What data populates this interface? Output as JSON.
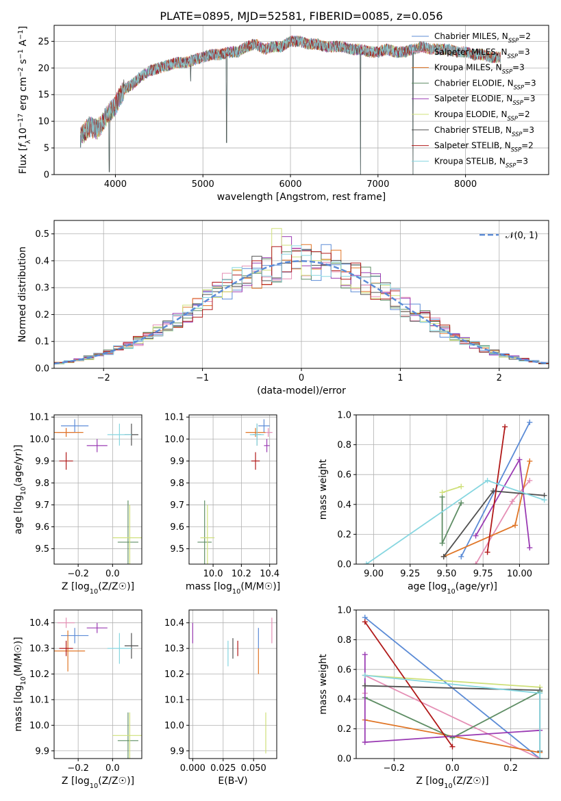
{
  "figure_title": "PLATE=0895, MJD=52581, FIBERID=0085, z=0.056",
  "colors": {
    "Chabrier MILES": "#5b8bd6",
    "Salpeter MILES": "#e58fb5",
    "Kroupa MILES": "#e07526",
    "Chabrier ELODIE": "#5e8d64",
    "Salpeter ELODIE": "#9a3bb3",
    "Kroupa ELODIE": "#cfe07a",
    "Chabrier STELIB": "#505050",
    "Salpeter STELIB": "#b01818",
    "Kroupa STELIB": "#86d6e0"
  },
  "chart_data": [
    {
      "id": "spectrum",
      "type": "line",
      "title": "PLATE=0895, MJD=52581, FIBERID=0085, z=0.056",
      "xlabel": "wavelength [Angstrom, rest frame]",
      "ylabel": "Flux [f_λ10^-17 erg cm^-2 s^-1 A^-1]",
      "xlim": [
        3300,
        8950
      ],
      "ylim": [
        0,
        28
      ],
      "xticks": [
        4000,
        5000,
        6000,
        7000,
        8000
      ],
      "yticks": [
        0,
        5,
        10,
        15,
        20,
        25
      ],
      "legend_position": "top-right",
      "legend": [
        {
          "name": "Chabrier MILES",
          "label": "N_SSP=2"
        },
        {
          "name": "Salpeter MILES",
          "label": "N_SSP=3"
        },
        {
          "name": "Kroupa MILES",
          "label": "N_SSP=3"
        },
        {
          "name": "Chabrier ELODIE",
          "label": "N_SSP=3"
        },
        {
          "name": "Salpeter ELODIE",
          "label": "N_SSP=3"
        },
        {
          "name": "Kroupa ELODIE",
          "label": "N_SSP=2"
        },
        {
          "name": "Chabrier STELIB",
          "label": "N_SSP=3"
        },
        {
          "name": "Salpeter STELIB",
          "label": "N_SSP=2"
        },
        {
          "name": "Kroupa STELIB",
          "label": "N_SSP=3"
        }
      ],
      "observed_flux": {
        "x": [
          3600,
          3700,
          3800,
          3900,
          4000,
          4100,
          4200,
          4300,
          4400,
          4500,
          4600,
          4700,
          4800,
          4900,
          5000,
          5100,
          5200,
          5300,
          5400,
          5500,
          5600,
          5700,
          5800,
          5900,
          6000,
          6100,
          6200,
          6300,
          6400,
          6500,
          6600,
          6700,
          6800,
          6900,
          7000,
          7100,
          7200,
          7300,
          7400,
          7500,
          7600,
          7700,
          7800,
          7900,
          8000,
          8100,
          8200,
          8300,
          8400
        ],
        "y": [
          7,
          9,
          8.5,
          11,
          13,
          16,
          17,
          18.5,
          19.5,
          20,
          20.5,
          21,
          21,
          21.5,
          22,
          22.5,
          22.5,
          23,
          23,
          24,
          24.5,
          23.5,
          24,
          24,
          25,
          25,
          24.5,
          24.5,
          24,
          24,
          24,
          23.5,
          23.5,
          23,
          23,
          23.5,
          23,
          23,
          23.5,
          24,
          23.5,
          23.5,
          23.5,
          23,
          23,
          22.5,
          22.5,
          22,
          22
        ],
        "dips": [
          [
            3930,
            0.5
          ],
          [
            4860,
            17.5
          ],
          [
            5270,
            6
          ],
          [
            6800,
            0
          ],
          [
            7400,
            0
          ]
        ]
      }
    },
    {
      "id": "residuals",
      "type": "line",
      "xlabel": "(data-model)/error",
      "ylabel": "Normed distribution",
      "xlim": [
        -2.5,
        2.5
      ],
      "ylim": [
        0,
        0.55
      ],
      "xticks": [
        -2,
        -1,
        0,
        1,
        2
      ],
      "yticks": [
        0.0,
        0.1,
        0.2,
        0.3,
        0.4,
        0.5
      ],
      "legend_position": "top-right",
      "reference_curve": {
        "label": "𝒩(0, 1)",
        "mean": 0,
        "sigma": 1
      },
      "histogram_bin_width": 0.1,
      "histogram_peak_values": {
        "Kroupa ELODIE": 0.52,
        "Salpeter ELODIE": 0.49,
        "Kroupa MILES": 0.46,
        "Chabrier MILES": 0.46,
        "Salpeter STELIB": 0.4
      }
    },
    {
      "id": "age_vs_Z",
      "type": "scatter",
      "xlabel": "Z [log10(Z/Z☉)]",
      "ylabel": "age  [log10(age/yr)]",
      "xlim": [
        -0.34,
        0.17
      ],
      "ylim": [
        9.43,
        10.11
      ],
      "xticks": [
        -0.2,
        0.0
      ],
      "yticks": [
        9.5,
        9.6,
        9.7,
        9.8,
        9.9,
        10.0,
        10.1
      ],
      "points": [
        {
          "model": "Chabrier MILES",
          "x": -0.22,
          "y": 10.06,
          "xerr": 0.08,
          "yerr": 0.03
        },
        {
          "model": "Salpeter MILES",
          "x": -0.27,
          "y": 10.03,
          "xerr": 0.05,
          "yerr": 0.02
        },
        {
          "model": "Kroupa MILES",
          "x": -0.27,
          "y": 10.03,
          "xerr": 0.1,
          "yerr": 0.02
        },
        {
          "model": "Chabrier ELODIE",
          "x": 0.09,
          "y": 9.53,
          "xerr": 0.06,
          "yerr": 0.19
        },
        {
          "model": "Salpeter ELODIE",
          "x": -0.09,
          "y": 9.97,
          "xerr": 0.06,
          "yerr": 0.03
        },
        {
          "model": "Kroupa ELODIE",
          "x": 0.1,
          "y": 9.55,
          "xerr": 0.1,
          "yerr": 0.15
        },
        {
          "model": "Chabrier STELIB",
          "x": 0.11,
          "y": 10.02,
          "xerr": 0.04,
          "yerr": 0.05
        },
        {
          "model": "Salpeter STELIB",
          "x": -0.27,
          "y": 9.9,
          "xerr": 0.04,
          "yerr": 0.04
        },
        {
          "model": "Kroupa STELIB",
          "x": 0.04,
          "y": 10.02,
          "xerr": 0.07,
          "yerr": 0.05
        }
      ]
    },
    {
      "id": "age_vs_mass",
      "type": "scatter",
      "xlabel": "mass [log10(M/M☉)]",
      "xlim": [
        9.83,
        10.45
      ],
      "ylim": [
        9.43,
        10.11
      ],
      "xticks": [
        10.0,
        10.2,
        10.4
      ],
      "yticks": [
        9.5,
        9.6,
        9.7,
        9.8,
        9.9,
        10.0,
        10.1
      ],
      "points": [
        {
          "model": "Chabrier MILES",
          "x": 10.36,
          "y": 10.06,
          "xerr": 0.04,
          "yerr": 0.03
        },
        {
          "model": "Salpeter MILES",
          "x": 10.39,
          "y": 10.03,
          "xerr": 0.03,
          "yerr": 0.02
        },
        {
          "model": "Kroupa MILES",
          "x": 10.3,
          "y": 10.03,
          "xerr": 0.07,
          "yerr": 0.02
        },
        {
          "model": "Chabrier ELODIE",
          "x": 9.94,
          "y": 9.53,
          "xerr": 0.05,
          "yerr": 0.19
        },
        {
          "model": "Salpeter ELODIE",
          "x": 10.38,
          "y": 9.97,
          "xerr": 0.02,
          "yerr": 0.03
        },
        {
          "model": "Kroupa ELODIE",
          "x": 9.96,
          "y": 9.55,
          "xerr": 0.05,
          "yerr": 0.15
        },
        {
          "model": "Chabrier STELIB",
          "x": 10.31,
          "y": 10.02,
          "xerr": 0.03,
          "yerr": 0.05
        },
        {
          "model": "Salpeter STELIB",
          "x": 10.3,
          "y": 9.9,
          "xerr": 0.03,
          "yerr": 0.04
        },
        {
          "model": "Kroupa STELIB",
          "x": 10.31,
          "y": 10.02,
          "xerr": 0.05,
          "yerr": 0.05
        }
      ]
    },
    {
      "id": "mass_vs_Z",
      "type": "scatter",
      "xlabel": "Z [log10(Z/Z☉)]",
      "ylabel": "mass [log10(M/M☉)]",
      "xlim": [
        -0.34,
        0.17
      ],
      "ylim": [
        9.87,
        10.45
      ],
      "xticks": [
        -0.2,
        0.0
      ],
      "yticks": [
        9.9,
        10.0,
        10.1,
        10.2,
        10.3,
        10.4
      ],
      "points": [
        {
          "model": "Chabrier MILES",
          "x": -0.22,
          "y": 10.35,
          "xerr": 0.08,
          "yerr": 0.03
        },
        {
          "model": "Salpeter MILES",
          "x": -0.27,
          "y": 10.4,
          "xerr": 0.05,
          "yerr": 0.02
        },
        {
          "model": "Kroupa MILES",
          "x": -0.26,
          "y": 10.29,
          "xerr": 0.1,
          "yerr": 0.08
        },
        {
          "model": "Chabrier ELODIE",
          "x": 0.09,
          "y": 9.94,
          "xerr": 0.06,
          "yerr": 0.11
        },
        {
          "model": "Salpeter ELODIE",
          "x": -0.09,
          "y": 10.38,
          "xerr": 0.06,
          "yerr": 0.02
        },
        {
          "model": "Kroupa ELODIE",
          "x": 0.1,
          "y": 9.96,
          "xerr": 0.1,
          "yerr": 0.09
        },
        {
          "model": "Chabrier STELIB",
          "x": 0.11,
          "y": 10.31,
          "xerr": 0.04,
          "yerr": 0.05
        },
        {
          "model": "Salpeter STELIB",
          "x": -0.27,
          "y": 10.3,
          "xerr": 0.04,
          "yerr": 0.03
        },
        {
          "model": "Kroupa STELIB",
          "x": 0.04,
          "y": 10.3,
          "xerr": 0.07,
          "yerr": 0.06
        }
      ]
    },
    {
      "id": "mass_vs_EBV",
      "type": "scatter",
      "xlabel": "E(B-V)",
      "xlim": [
        -0.003,
        0.069
      ],
      "ylim": [
        9.87,
        10.45
      ],
      "xticks": [
        0.0,
        0.025,
        0.05
      ],
      "yticks": [
        9.9,
        10.0,
        10.1,
        10.2,
        10.3,
        10.4
      ],
      "points": [
        {
          "model": "Chabrier MILES",
          "x": 0.054,
          "y": 10.34,
          "yerr": 0.04
        },
        {
          "model": "Salpeter MILES",
          "x": 0.065,
          "y": 10.37,
          "yerr": 0.05
        },
        {
          "model": "Kroupa MILES",
          "x": 0.054,
          "y": 10.25,
          "yerr": 0.05
        },
        {
          "model": "Chabrier ELODIE",
          "x": 0.0,
          "y": 10.05,
          "yerr": 0.0
        },
        {
          "model": "Salpeter ELODIE",
          "x": 0.0,
          "y": 10.36,
          "yerr": 0.04
        },
        {
          "model": "Kroupa ELODIE",
          "x": 0.06,
          "y": 9.97,
          "yerr": 0.08
        },
        {
          "model": "Chabrier STELIB",
          "x": 0.033,
          "y": 10.3,
          "yerr": 0.04
        },
        {
          "model": "Salpeter STELIB",
          "x": 0.037,
          "y": 10.3,
          "yerr": 0.03
        },
        {
          "model": "Kroupa STELIB",
          "x": 0.029,
          "y": 10.28,
          "yerr": 0.05
        }
      ]
    },
    {
      "id": "weight_vs_age",
      "type": "line",
      "xlabel": "age  [log10(age/yr)]",
      "ylabel": "mass weight",
      "xlim": [
        8.88,
        10.2
      ],
      "ylim": [
        0,
        1
      ],
      "xticks": [
        9.0,
        9.25,
        9.5,
        9.75,
        10.0
      ],
      "yticks": [
        0.0,
        0.2,
        0.4,
        0.6,
        0.8,
        1.0
      ],
      "series": [
        {
          "model": "Chabrier MILES",
          "x": [
            9.6,
            10.07
          ],
          "y": [
            0.05,
            0.95
          ]
        },
        {
          "model": "Salpeter MILES",
          "x": [
            9.7,
            9.95,
            10.07
          ],
          "y": [
            0.0,
            0.42,
            0.56
          ]
        },
        {
          "model": "Kroupa MILES",
          "x": [
            9.48,
            9.97,
            10.07
          ],
          "y": [
            0.05,
            0.26,
            0.69
          ]
        },
        {
          "model": "Chabrier ELODIE",
          "x": [
            9.47,
            9.47,
            9.6
          ],
          "y": [
            0.45,
            0.14,
            0.41
          ]
        },
        {
          "model": "Salpeter ELODIE",
          "x": [
            9.7,
            10.0,
            10.07
          ],
          "y": [
            0.19,
            0.7,
            0.11
          ]
        },
        {
          "model": "Kroupa ELODIE",
          "x": [
            9.47,
            9.6
          ],
          "y": [
            0.48,
            0.52
          ]
        },
        {
          "model": "Chabrier STELIB",
          "x": [
            9.48,
            9.82,
            10.17
          ],
          "y": [
            0.05,
            0.49,
            0.46
          ]
        },
        {
          "model": "Salpeter STELIB",
          "x": [
            9.78,
            9.9
          ],
          "y": [
            0.08,
            0.92
          ]
        },
        {
          "model": "Kroupa STELIB",
          "x": [
            8.95,
            9.78,
            10.17
          ],
          "y": [
            0.0,
            0.56,
            0.43
          ]
        }
      ]
    },
    {
      "id": "weight_vs_Z",
      "type": "line",
      "xlabel": "Z [log10(Z/Z☉)]",
      "ylabel": "mass weight",
      "xlim": [
        -0.33,
        0.33
      ],
      "ylim": [
        0,
        1
      ],
      "xticks": [
        -0.2,
        0.0,
        0.2
      ],
      "yticks": [
        0.0,
        0.2,
        0.4,
        0.6,
        0.8,
        1.0
      ],
      "series": [
        {
          "model": "Chabrier MILES",
          "x": [
            -0.3,
            0.3
          ],
          "y": [
            0.95,
            0.0
          ]
        },
        {
          "model": "Salpeter MILES",
          "x": [
            -0.3,
            -0.3,
            0.3
          ],
          "y": [
            0.44,
            0.56,
            0.0
          ]
        },
        {
          "model": "Kroupa MILES",
          "x": [
            -0.3,
            0.3
          ],
          "y": [
            0.26,
            0.04
          ]
        },
        {
          "model": "Chabrier ELODIE",
          "x": [
            -0.3,
            0.0,
            0.3
          ],
          "y": [
            0.41,
            0.14,
            0.45
          ]
        },
        {
          "model": "Salpeter ELODIE",
          "x": [
            -0.3,
            -0.3,
            0.3
          ],
          "y": [
            0.7,
            0.11,
            0.19
          ]
        },
        {
          "model": "Kroupa ELODIE",
          "x": [
            -0.3,
            0.3
          ],
          "y": [
            0.56,
            0.48
          ]
        },
        {
          "model": "Chabrier STELIB",
          "x": [
            -0.3,
            0.3,
            0.3
          ],
          "y": [
            0.49,
            0.46,
            0.05
          ]
        },
        {
          "model": "Salpeter STELIB",
          "x": [
            -0.3,
            0.0
          ],
          "y": [
            0.92,
            0.08
          ]
        },
        {
          "model": "Kroupa STELIB",
          "x": [
            -0.3,
            0.3,
            0.3
          ],
          "y": [
            0.56,
            0.44,
            0.0
          ]
        }
      ]
    }
  ]
}
